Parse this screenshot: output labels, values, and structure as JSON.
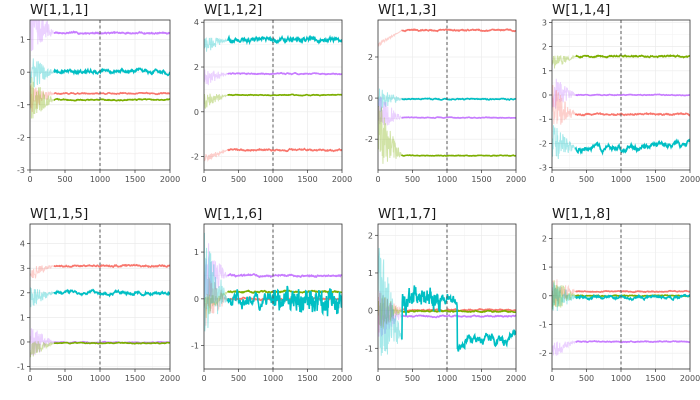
{
  "chart_data": [
    {
      "type": "line",
      "title": "W[1,1,1]",
      "xlim": [
        0,
        2000
      ],
      "ylim": [
        -3,
        1.6
      ],
      "xticks": [
        0,
        500,
        1000,
        1500,
        2000
      ],
      "yticks": [
        -3,
        -2,
        -1,
        0,
        1
      ],
      "vline_x": 1000,
      "grid": true,
      "series": [
        {
          "color": "#C77CFF",
          "start": 1.5,
          "final": 1.2,
          "noise": 0.015,
          "mode": "flat"
        },
        {
          "color": "#00BFC4",
          "start": -0.05,
          "final": 0.02,
          "noise": 0.035,
          "mode": "flat"
        },
        {
          "color": "#F8766D",
          "start": -0.85,
          "final": -0.65,
          "noise": 0.01,
          "mode": "flat"
        },
        {
          "color": "#7CAE00",
          "start": -0.8,
          "final": -0.85,
          "noise": 0.01,
          "mode": "flat"
        }
      ]
    },
    {
      "type": "line",
      "title": "W[1,1,2]",
      "xlim": [
        0,
        2000
      ],
      "ylim": [
        -2.6,
        4.1
      ],
      "xticks": [
        0,
        500,
        1000,
        1500,
        2000
      ],
      "yticks": [
        -2,
        0,
        2,
        4
      ],
      "vline_x": 1000,
      "grid": true,
      "series": [
        {
          "color": "#00BFC4",
          "start": 3.0,
          "final": 3.2,
          "noise": 0.06,
          "mode": "flat"
        },
        {
          "color": "#C77CFF",
          "start": 1.5,
          "final": 1.7,
          "noise": 0.015,
          "mode": "flat"
        },
        {
          "color": "#7CAE00",
          "start": 0.5,
          "final": 0.75,
          "noise": 0.01,
          "mode": "flat"
        },
        {
          "color": "#F8766D",
          "start": -2.1,
          "final": -1.7,
          "noise": 0.02,
          "mode": "flat"
        }
      ]
    },
    {
      "type": "line",
      "title": "W[1,1,3]",
      "xlim": [
        0,
        2000
      ],
      "ylim": [
        -3.5,
        3.8
      ],
      "xticks": [
        0,
        500,
        1000,
        1500,
        2000
      ],
      "yticks": [
        -2,
        0,
        2
      ],
      "vline_x": 1000,
      "grid": true,
      "series": [
        {
          "color": "#F8766D",
          "start": 2.6,
          "final": 3.3,
          "noise": 0.02,
          "mode": "flat"
        },
        {
          "color": "#00BFC4",
          "start": -0.1,
          "final": -0.05,
          "noise": 0.015,
          "mode": "flat"
        },
        {
          "color": "#C77CFF",
          "start": -0.7,
          "final": -0.95,
          "noise": 0.01,
          "mode": "flat"
        },
        {
          "color": "#7CAE00",
          "start": -1.8,
          "final": -2.8,
          "noise": 0.01,
          "mode": "flat"
        }
      ]
    },
    {
      "type": "line",
      "title": "W[1,1,4]",
      "xlim": [
        0,
        2000
      ],
      "ylim": [
        -3.1,
        3.1
      ],
      "xticks": [
        0,
        500,
        1000,
        1500,
        2000
      ],
      "yticks": [
        -3,
        -2,
        -1,
        0,
        1,
        2,
        3
      ],
      "vline_x": 1000,
      "grid": true,
      "series": [
        {
          "color": "#7CAE00",
          "start": 1.3,
          "final": 1.6,
          "noise": 0.02,
          "mode": "flat"
        },
        {
          "color": "#C77CFF",
          "start": 0.1,
          "final": 0.0,
          "noise": 0.01,
          "mode": "flat"
        },
        {
          "color": "#F8766D",
          "start": -0.5,
          "final": -0.8,
          "noise": 0.02,
          "mode": "flat"
        },
        {
          "color": "#00BFC4",
          "start": -2.0,
          "final": -2.2,
          "noise": 0.07,
          "mode": "drift",
          "post_delta": 0.2
        }
      ]
    },
    {
      "type": "line",
      "title": "W[1,1,5]",
      "xlim": [
        0,
        2000
      ],
      "ylim": [
        -1.1,
        4.8
      ],
      "xticks": [
        0,
        500,
        1000,
        1500,
        2000
      ],
      "yticks": [
        -1,
        0,
        1,
        2,
        3,
        4
      ],
      "vline_x": 1000,
      "grid": true,
      "series": [
        {
          "color": "#F8766D",
          "start": 2.8,
          "final": 3.1,
          "noise": 0.02,
          "mode": "flat"
        },
        {
          "color": "#00BFC4",
          "start": 1.8,
          "final": 2.0,
          "noise": 0.04,
          "mode": "flat"
        },
        {
          "color": "#C77CFF",
          "start": 0.0,
          "final": -0.02,
          "noise": 0.01,
          "mode": "flat"
        },
        {
          "color": "#7CAE00",
          "start": -0.3,
          "final": -0.05,
          "noise": 0.01,
          "mode": "flat"
        }
      ]
    },
    {
      "type": "line",
      "title": "W[1,1,6]",
      "xlim": [
        0,
        2000
      ],
      "ylim": [
        -1.5,
        1.6
      ],
      "xticks": [
        0,
        500,
        1000,
        1500,
        2000
      ],
      "yticks": [
        -1,
        0,
        1
      ],
      "vline_x": 1000,
      "grid": true,
      "series": [
        {
          "color": "#C77CFF",
          "start": 0.6,
          "final": 0.5,
          "noise": 0.012,
          "mode": "flat"
        },
        {
          "color": "#7CAE00",
          "start": -0.2,
          "final": 0.15,
          "noise": 0.01,
          "mode": "flat"
        },
        {
          "color": "#F8766D",
          "start": 0.0,
          "final": 0.0,
          "noise": 0.012,
          "mode": "flat"
        },
        {
          "color": "#00BFC4",
          "start": 0.4,
          "final": -0.05,
          "noise": 0.09,
          "mode": "volatile"
        }
      ]
    },
    {
      "type": "line",
      "title": "W[1,1,7]",
      "xlim": [
        0,
        2000
      ],
      "ylim": [
        -1.55,
        2.3
      ],
      "xticks": [
        0,
        500,
        1000,
        1500,
        2000
      ],
      "yticks": [
        -1,
        0,
        1,
        2
      ],
      "vline_x": 1000,
      "grid": true,
      "series": [
        {
          "color": "#F8766D",
          "start": 0.0,
          "final": 0.02,
          "noise": 0.01,
          "mode": "flat"
        },
        {
          "color": "#7CAE00",
          "start": -0.05,
          "final": -0.02,
          "noise": 0.01,
          "mode": "flat"
        },
        {
          "color": "#C77CFF",
          "start": -0.1,
          "final": -0.15,
          "noise": 0.01,
          "mode": "flat"
        },
        {
          "color": "#00BFC4",
          "start": 0.3,
          "final": -0.75,
          "noise": 0.08,
          "mode": "crash"
        }
      ]
    },
    {
      "type": "line",
      "title": "W[1,1,8]",
      "xlim": [
        0,
        2000
      ],
      "ylim": [
        -2.55,
        2.5
      ],
      "xticks": [
        0,
        500,
        1000,
        1500,
        2000
      ],
      "yticks": [
        -2,
        -1,
        0,
        1,
        2
      ],
      "vline_x": 1000,
      "grid": true,
      "series": [
        {
          "color": "#F8766D",
          "start": 0.1,
          "final": 0.15,
          "noise": 0.01,
          "mode": "flat"
        },
        {
          "color": "#7CAE00",
          "start": 0.0,
          "final": 0.0,
          "noise": 0.01,
          "mode": "flat"
        },
        {
          "color": "#00BFC4",
          "start": -0.05,
          "final": -0.05,
          "noise": 0.03,
          "mode": "flat"
        },
        {
          "color": "#C77CFF",
          "start": -1.9,
          "final": -1.6,
          "noise": 0.01,
          "mode": "flat"
        }
      ]
    }
  ]
}
